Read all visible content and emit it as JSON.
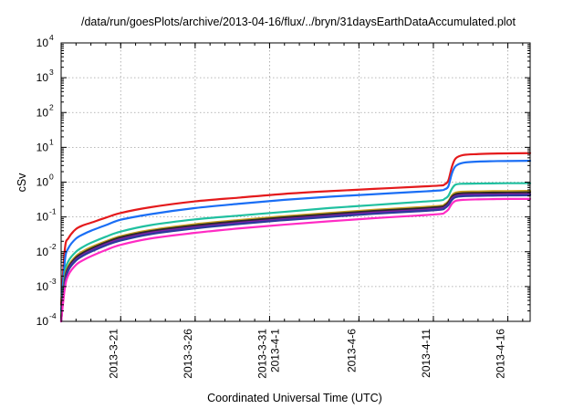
{
  "chart_data": {
    "type": "line",
    "title": "/data/run/goesPlots/archive/2013-04-16/flux/../bryn/31daysEarthDataAccumulated.plot",
    "xlabel": "Coordinated Universal Time (UTC)",
    "ylabel": "cSv",
    "y_scale": "log",
    "ylim": [
      0.0001,
      10000
    ],
    "xlim": [
      "2013-03-17",
      "2013-04-17T12:00"
    ],
    "grid": true,
    "legend": "none",
    "x_ticks": [
      {
        "date": "2013-03-21",
        "lines": [
          "2013-3-21"
        ]
      },
      {
        "date": "2013-03-26",
        "lines": [
          "2013-3-26"
        ]
      },
      {
        "date": "2013-03-31",
        "lines": [
          "2013-3-31",
          "2013-4-1"
        ]
      },
      {
        "date": "2013-04-06",
        "lines": [
          "2013-4-6"
        ]
      },
      {
        "date": "2013-04-11",
        "lines": [
          "2013-4-11"
        ]
      },
      {
        "date": "2013-04-16",
        "lines": [
          "2013-4-16"
        ]
      }
    ],
    "y_ticks": [
      {
        "base": "10",
        "exp": "-4"
      },
      {
        "base": "10",
        "exp": "-3"
      },
      {
        "base": "10",
        "exp": "-2"
      },
      {
        "base": "10",
        "exp": "-1"
      },
      {
        "base": "10",
        "exp": "0"
      },
      {
        "base": "10",
        "exp": "1"
      },
      {
        "base": "10",
        "exp": "2"
      },
      {
        "base": "10",
        "exp": "3"
      },
      {
        "base": "10",
        "exp": "4"
      }
    ],
    "x": [
      "2013-03-17",
      "2013-03-17T06:00",
      "2013-03-17T12:00",
      "2013-03-18",
      "2013-03-18T12:00",
      "2013-03-19",
      "2013-03-20",
      "2013-03-21",
      "2013-03-23",
      "2013-03-26",
      "2013-03-29",
      "2013-04-01",
      "2013-04-04",
      "2013-04-07",
      "2013-04-10",
      "2013-04-11T12:00",
      "2013-04-11T18:00",
      "2013-04-12",
      "2013-04-12T06:00",
      "2013-04-12T12:00",
      "2013-04-13",
      "2013-04-14",
      "2013-04-15",
      "2013-04-16",
      "2013-04-17T12:00"
    ],
    "series": [
      {
        "color": "#e41a1c",
        "values": [
          0.0003,
          0.012,
          0.025,
          0.045,
          0.058,
          0.068,
          0.095,
          0.13,
          0.19,
          0.28,
          0.36,
          0.46,
          0.55,
          0.64,
          0.74,
          0.8,
          0.86,
          1.1,
          2.8,
          4.8,
          6.0,
          6.4,
          6.6,
          6.7,
          6.8
        ]
      },
      {
        "color": "#1a6ef5",
        "values": [
          0.0002,
          0.0055,
          0.013,
          0.024,
          0.032,
          0.04,
          0.058,
          0.083,
          0.12,
          0.18,
          0.24,
          0.31,
          0.38,
          0.45,
          0.53,
          0.58,
          0.62,
          0.75,
          1.8,
          2.9,
          3.6,
          3.9,
          4.0,
          4.05,
          4.1
        ]
      },
      {
        "color": "#20c0a0",
        "values": [
          0.00015,
          0.0024,
          0.0055,
          0.01,
          0.014,
          0.018,
          0.027,
          0.038,
          0.058,
          0.085,
          0.11,
          0.14,
          0.18,
          0.22,
          0.27,
          0.3,
          0.33,
          0.4,
          0.65,
          0.85,
          0.9,
          0.91,
          0.92,
          0.93,
          0.93
        ]
      },
      {
        "color": "#c8a020",
        "values": [
          0.00012,
          0.0017,
          0.004,
          0.0075,
          0.0105,
          0.0135,
          0.02,
          0.028,
          0.042,
          0.062,
          0.082,
          0.105,
          0.13,
          0.16,
          0.19,
          0.21,
          0.23,
          0.28,
          0.42,
          0.5,
          0.53,
          0.54,
          0.55,
          0.55,
          0.56
        ]
      },
      {
        "color": "#2a2a2a",
        "values": [
          0.00011,
          0.0015,
          0.0036,
          0.0068,
          0.0095,
          0.0122,
          0.0185,
          0.026,
          0.039,
          0.057,
          0.076,
          0.097,
          0.12,
          0.148,
          0.175,
          0.195,
          0.21,
          0.26,
          0.38,
          0.45,
          0.48,
          0.49,
          0.5,
          0.5,
          0.51
        ]
      },
      {
        "color": "#7a1fa8",
        "values": [
          0.0001,
          0.0013,
          0.0032,
          0.006,
          0.0084,
          0.0108,
          0.0165,
          0.023,
          0.035,
          0.051,
          0.068,
          0.087,
          0.108,
          0.133,
          0.158,
          0.175,
          0.19,
          0.23,
          0.34,
          0.4,
          0.43,
          0.44,
          0.44,
          0.45,
          0.45
        ]
      },
      {
        "color": "#2b3a9c",
        "values": [
          0.0001,
          0.0012,
          0.003,
          0.0056,
          0.0078,
          0.01,
          0.0152,
          0.021,
          0.032,
          0.047,
          0.063,
          0.081,
          0.1,
          0.123,
          0.146,
          0.162,
          0.176,
          0.215,
          0.31,
          0.37,
          0.395,
          0.405,
          0.41,
          0.415,
          0.42
        ]
      },
      {
        "color": "#ff2bc4",
        "values": [
          0.0001,
          0.0009,
          0.0022,
          0.0042,
          0.0058,
          0.0074,
          0.0112,
          0.0158,
          0.024,
          0.035,
          0.047,
          0.06,
          0.075,
          0.092,
          0.11,
          0.122,
          0.133,
          0.162,
          0.24,
          0.29,
          0.31,
          0.32,
          0.325,
          0.33,
          0.33
        ]
      }
    ]
  }
}
